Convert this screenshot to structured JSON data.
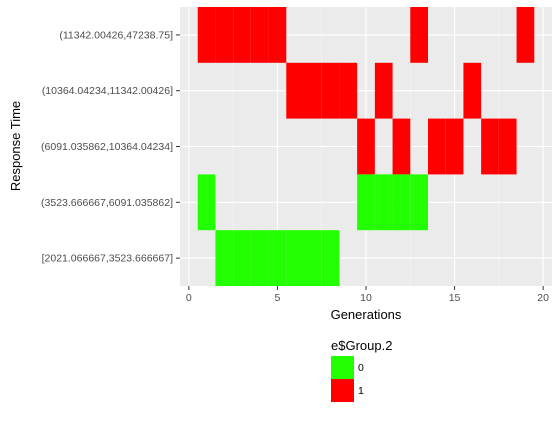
{
  "chart_data": {
    "type": "heatmap",
    "title": "",
    "xlabel": "Generations",
    "ylabel": "Response Time",
    "xlim": [
      -0.5,
      20.5
    ],
    "xticks": [
      0,
      5,
      10,
      15,
      20
    ],
    "xtick_labels": [
      "0",
      "5",
      "10",
      "15",
      "20"
    ],
    "categories": [
      "[2021.066667,3523.666667]",
      "(3523.666667,6091.035862]",
      "(6091.035862,10364.04234]",
      "(10364.04234,11342.00426]",
      "(11342.00426,47238.75]"
    ],
    "grid": true,
    "legend": {
      "title": "e$Group.2",
      "placement": "bottom",
      "entries": [
        {
          "label": "0",
          "color": "#22ff00"
        },
        {
          "label": "1",
          "color": "#ff0000"
        }
      ]
    },
    "cells": [
      {
        "x": 1,
        "category": "(11342.00426,47238.75]",
        "group": "1"
      },
      {
        "x": 2,
        "category": "(11342.00426,47238.75]",
        "group": "1"
      },
      {
        "x": 3,
        "category": "(11342.00426,47238.75]",
        "group": "1"
      },
      {
        "x": 4,
        "category": "(11342.00426,47238.75]",
        "group": "1"
      },
      {
        "x": 5,
        "category": "(11342.00426,47238.75]",
        "group": "1"
      },
      {
        "x": 13,
        "category": "(11342.00426,47238.75]",
        "group": "1"
      },
      {
        "x": 19,
        "category": "(11342.00426,47238.75]",
        "group": "1"
      },
      {
        "x": 6,
        "category": "(10364.04234,11342.00426]",
        "group": "1"
      },
      {
        "x": 7,
        "category": "(10364.04234,11342.00426]",
        "group": "1"
      },
      {
        "x": 8,
        "category": "(10364.04234,11342.00426]",
        "group": "1"
      },
      {
        "x": 9,
        "category": "(10364.04234,11342.00426]",
        "group": "1"
      },
      {
        "x": 11,
        "category": "(10364.04234,11342.00426]",
        "group": "1"
      },
      {
        "x": 16,
        "category": "(10364.04234,11342.00426]",
        "group": "1"
      },
      {
        "x": 10,
        "category": "(6091.035862,10364.04234]",
        "group": "1"
      },
      {
        "x": 12,
        "category": "(6091.035862,10364.04234]",
        "group": "1"
      },
      {
        "x": 14,
        "category": "(6091.035862,10364.04234]",
        "group": "1"
      },
      {
        "x": 15,
        "category": "(6091.035862,10364.04234]",
        "group": "1"
      },
      {
        "x": 17,
        "category": "(6091.035862,10364.04234]",
        "group": "1"
      },
      {
        "x": 18,
        "category": "(6091.035862,10364.04234]",
        "group": "1"
      },
      {
        "x": 1,
        "category": "(3523.666667,6091.035862]",
        "group": "0"
      },
      {
        "x": 10,
        "category": "(3523.666667,6091.035862]",
        "group": "0"
      },
      {
        "x": 11,
        "category": "(3523.666667,6091.035862]",
        "group": "0"
      },
      {
        "x": 12,
        "category": "(3523.666667,6091.035862]",
        "group": "0"
      },
      {
        "x": 13,
        "category": "(3523.666667,6091.035862]",
        "group": "0"
      },
      {
        "x": 2,
        "category": "[2021.066667,3523.666667]",
        "group": "0"
      },
      {
        "x": 3,
        "category": "[2021.066667,3523.666667]",
        "group": "0"
      },
      {
        "x": 4,
        "category": "[2021.066667,3523.666667]",
        "group": "0"
      },
      {
        "x": 5,
        "category": "[2021.066667,3523.666667]",
        "group": "0"
      },
      {
        "x": 6,
        "category": "[2021.066667,3523.666667]",
        "group": "0"
      },
      {
        "x": 7,
        "category": "[2021.066667,3523.666667]",
        "group": "0"
      },
      {
        "x": 8,
        "category": "[2021.066667,3523.666667]",
        "group": "0"
      }
    ]
  }
}
